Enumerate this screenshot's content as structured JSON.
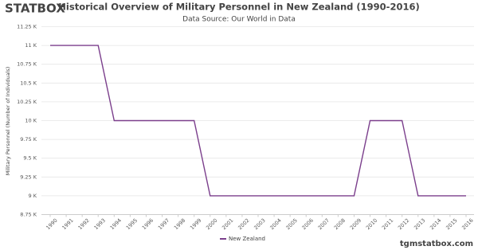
{
  "logo": "STATBOX",
  "watermark": "tgmstatbox.com",
  "chart_data": {
    "type": "line",
    "title": "Historical Overview of Military Personnel in New Zealand (1990-2016)",
    "subtitle": "Data Source: Our World in Data",
    "y_label": "Military Personnel (Number of Individuals)",
    "categories": [
      "1990",
      "1991",
      "1992",
      "1993",
      "1994",
      "1995",
      "1996",
      "1997",
      "1998",
      "1999",
      "2000",
      "2001",
      "2002",
      "2003",
      "2004",
      "2005",
      "2006",
      "2007",
      "2008",
      "2009",
      "2010",
      "2011",
      "2012",
      "2013",
      "2014",
      "2015",
      "2016"
    ],
    "series": [
      {
        "name": "New Zealand",
        "color": "#7b3f8c",
        "values": [
          11000,
          11000,
          11000,
          11000,
          10000,
          10000,
          10000,
          10000,
          10000,
          10000,
          9000,
          9000,
          9000,
          9000,
          9000,
          9000,
          9000,
          9000,
          9000,
          9000,
          10000,
          10000,
          10000,
          9000,
          9000,
          9000,
          9000
        ]
      }
    ],
    "ylim": [
      8750,
      11250
    ],
    "yticks": [
      {
        "value": 8750,
        "label": "8.75 K"
      },
      {
        "value": 9000,
        "label": "9 K"
      },
      {
        "value": 9250,
        "label": "9.25 K"
      },
      {
        "value": 9500,
        "label": "9.5 K"
      },
      {
        "value": 9750,
        "label": "9.75 K"
      },
      {
        "value": 10000,
        "label": "10 K"
      },
      {
        "value": 10250,
        "label": "10.25 K"
      },
      {
        "value": 10500,
        "label": "10.5 K"
      },
      {
        "value": 10750,
        "label": "10.75 K"
      },
      {
        "value": 11000,
        "label": "11 K"
      },
      {
        "value": 11250,
        "label": "11.25 K"
      }
    ],
    "grid": true,
    "legend": "bottom"
  }
}
